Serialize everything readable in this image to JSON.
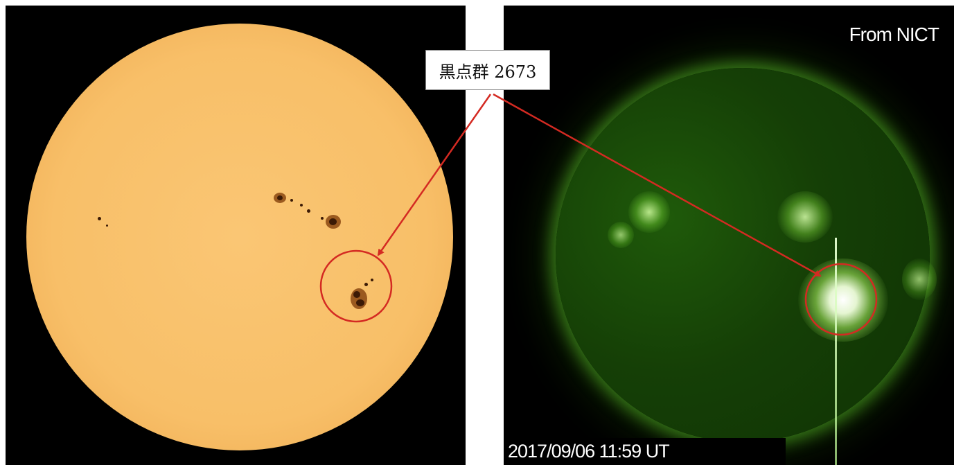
{
  "label": {
    "text": "黒点群 2673"
  },
  "credit": "From NICT",
  "timestamp": "2017/09/06  11:59 UT",
  "colors": {
    "visible_sun": "#f8bf68",
    "euv_sun": "#1f5a0a",
    "annotation_red": "#d42a22",
    "background": "#000000"
  },
  "panels": [
    {
      "name": "visible-light-sun"
    },
    {
      "name": "euv-sun"
    }
  ]
}
